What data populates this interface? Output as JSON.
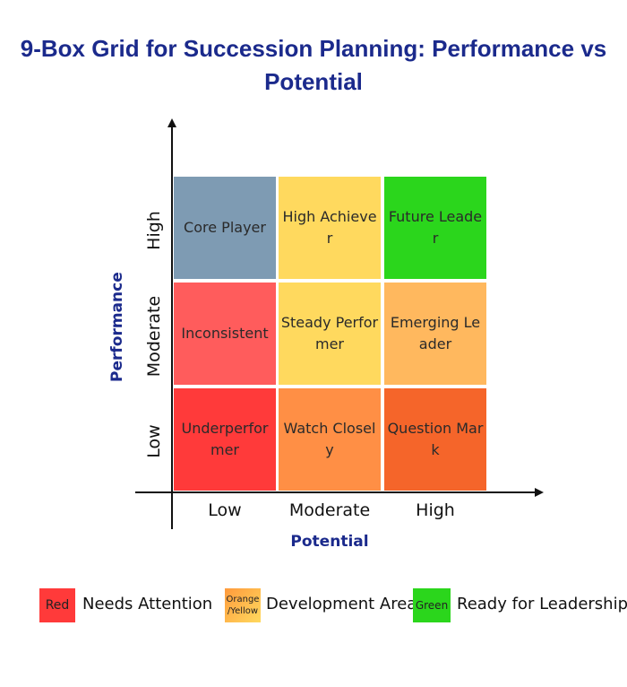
{
  "title": "9-Box Grid for Succession Planning: Performance vs Potential",
  "axes": {
    "y_title": "Performance",
    "x_title": "Potential",
    "y_ticks": [
      "High",
      "Moderate",
      "Low"
    ],
    "x_ticks": [
      "Low",
      "Moderate",
      "High"
    ]
  },
  "grid": [
    [
      {
        "label": "Core Player",
        "color": "#7e9bb3"
      },
      {
        "label": "High Achiever",
        "color": "#ffd95e"
      },
      {
        "label": "Future Leader",
        "color": "#2bd61c"
      }
    ],
    [
      {
        "label": "Inconsistent",
        "color": "#ff5c5c"
      },
      {
        "label": "Steady Performer",
        "color": "#ffd95e"
      },
      {
        "label": "Emerging Leader",
        "color": "#ffb85e"
      }
    ],
    [
      {
        "label": "Underperformer",
        "color": "#ff3a3a"
      },
      {
        "label": "Watch Closely",
        "color": "#ff8f45"
      },
      {
        "label": "Question Mark",
        "color": "#f5652a"
      }
    ]
  ],
  "legend": [
    {
      "swatch_text": "Red",
      "label": "Needs Attention",
      "color": "#ff3a3a"
    },
    {
      "swatch_text": "Orange /Yellow",
      "label": "Development Area",
      "color": "#ffc45e"
    },
    {
      "swatch_text": "Green",
      "label": "Ready for Leadership",
      "color": "#2bd61c"
    }
  ]
}
